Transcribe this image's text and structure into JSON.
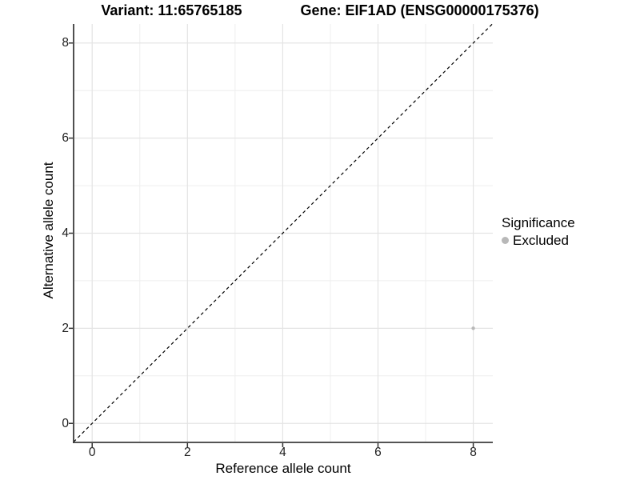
{
  "chart_data": {
    "type": "scatter",
    "title_left": "Variant: 11:65765185",
    "title_right": "Gene: EIF1AD (ENSG00000175376)",
    "xlabel": "Reference allele count",
    "ylabel": "Alternative allele count",
    "xlim": [
      -0.39,
      8.41
    ],
    "ylim": [
      -0.4,
      8.4
    ],
    "x_major_ticks": [
      0,
      2,
      4,
      6,
      8
    ],
    "x_tick_labels": [
      "0",
      "2",
      "4",
      "6",
      "8"
    ],
    "x_minor_ticks": [
      1,
      3,
      5,
      7
    ],
    "y_major_ticks": [
      0,
      2,
      4,
      6,
      8
    ],
    "y_tick_labels": [
      "0",
      "2",
      "4",
      "6",
      "8"
    ],
    "y_minor_ticks": [
      1,
      3,
      5,
      7
    ],
    "grid": "on",
    "identity_line": {
      "equation": "y = x",
      "style": "dashed",
      "color": "#000000"
    },
    "points": [
      {
        "x": 8,
        "y": 2,
        "series": "Excluded",
        "color": "#b8b8b8",
        "radius": 2.2
      }
    ],
    "legend": {
      "title": "Significance",
      "position": "right",
      "entries": [
        {
          "label": "Excluded",
          "color": "#b8b8b8"
        }
      ]
    },
    "colors": {
      "background": "#ffffff",
      "major_grid": "#e4e4e4",
      "minor_grid": "#eeeeee",
      "axis_line": "#3d3d3d",
      "tick_mark": "#333333",
      "text": "#000000"
    }
  }
}
